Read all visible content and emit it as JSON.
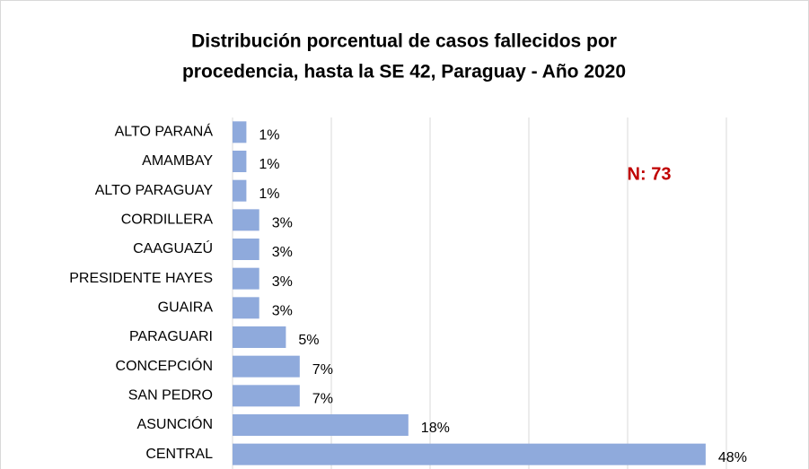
{
  "chart_data": {
    "type": "barh",
    "title": [
      "Distribución porcentual de casos fallecidos por",
      "procedencia, hasta la SE 42, Paraguay - Año 2020"
    ],
    "annotation": "N: 73",
    "categories": [
      "ALTO PARANÁ",
      "AMAMBAY",
      "ALTO PARAGUAY",
      "CORDILLERA",
      "CAAGUAZÚ",
      "PRESIDENTE HAYES",
      "GUAIRA",
      "PARAGUARI",
      "CONCEPCIÓN",
      "SAN PEDRO",
      "ASUNCIÓN",
      "CENTRAL"
    ],
    "values": [
      1.4,
      1.4,
      1.4,
      2.7,
      2.7,
      2.7,
      2.7,
      5.4,
      6.8,
      6.8,
      17.8,
      47.9
    ],
    "value_labels": [
      "1%",
      "1%",
      "1%",
      "3%",
      "3%",
      "3%",
      "3%",
      "5%",
      "7%",
      "7%",
      "18%",
      "48%"
    ],
    "color": "#8faadc",
    "xlim": [
      0,
      50
    ],
    "xticks": [
      0,
      10,
      20,
      30,
      40,
      50
    ],
    "grid": true
  }
}
